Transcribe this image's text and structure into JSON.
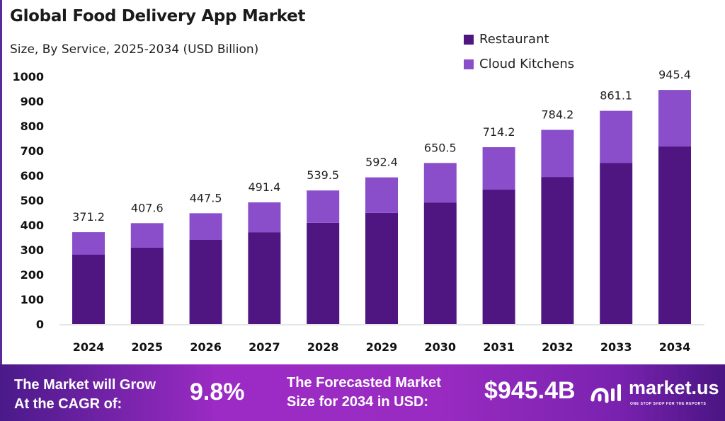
{
  "chart_data": {
    "type": "bar",
    "stacked": true,
    "title": "Global Food Delivery App Market",
    "subtitle": "Size, By Service, 2025-2034 (USD Billion)",
    "categories": [
      "2024",
      "2025",
      "2026",
      "2027",
      "2028",
      "2029",
      "2030",
      "2031",
      "2032",
      "2033",
      "2034"
    ],
    "series": [
      {
        "name": "Restaurant",
        "color": "#4f1580",
        "values": [
          280,
          309,
          340,
          371,
          409,
          449,
          491,
          543,
          594,
          651,
          717
        ]
      },
      {
        "name": "Cloud Kitchens",
        "color": "#8a4ecb",
        "values": [
          91.2,
          98.6,
          107.5,
          120.4,
          130.5,
          143.4,
          159.5,
          171.2,
          190.2,
          210.1,
          228.4
        ]
      }
    ],
    "totals": [
      "371.2",
      "407.6",
      "447.5",
      "491.4",
      "539.5",
      "592.4",
      "650.5",
      "714.2",
      "784.2",
      "861.1",
      "945.4"
    ],
    "ylim": [
      0,
      1000
    ],
    "yticks": [
      "0",
      "100",
      "200",
      "300",
      "400",
      "500",
      "600",
      "700",
      "800",
      "900",
      "1000"
    ],
    "grid": false,
    "legend": "top-right",
    "xlabel": "",
    "ylabel": ""
  },
  "footer": {
    "cagr_label_1": "The Market will Grow",
    "cagr_label_2": "At the CAGR of:",
    "cagr_value": "9.8%",
    "forecast_label_1": "The Forecasted Market",
    "forecast_label_2": "Size for 2034 in USD:",
    "forecast_value": "$945.4B",
    "brand": "market.us",
    "brand_tagline": "ONE STOP SHOP FOR THE REPORTS"
  }
}
